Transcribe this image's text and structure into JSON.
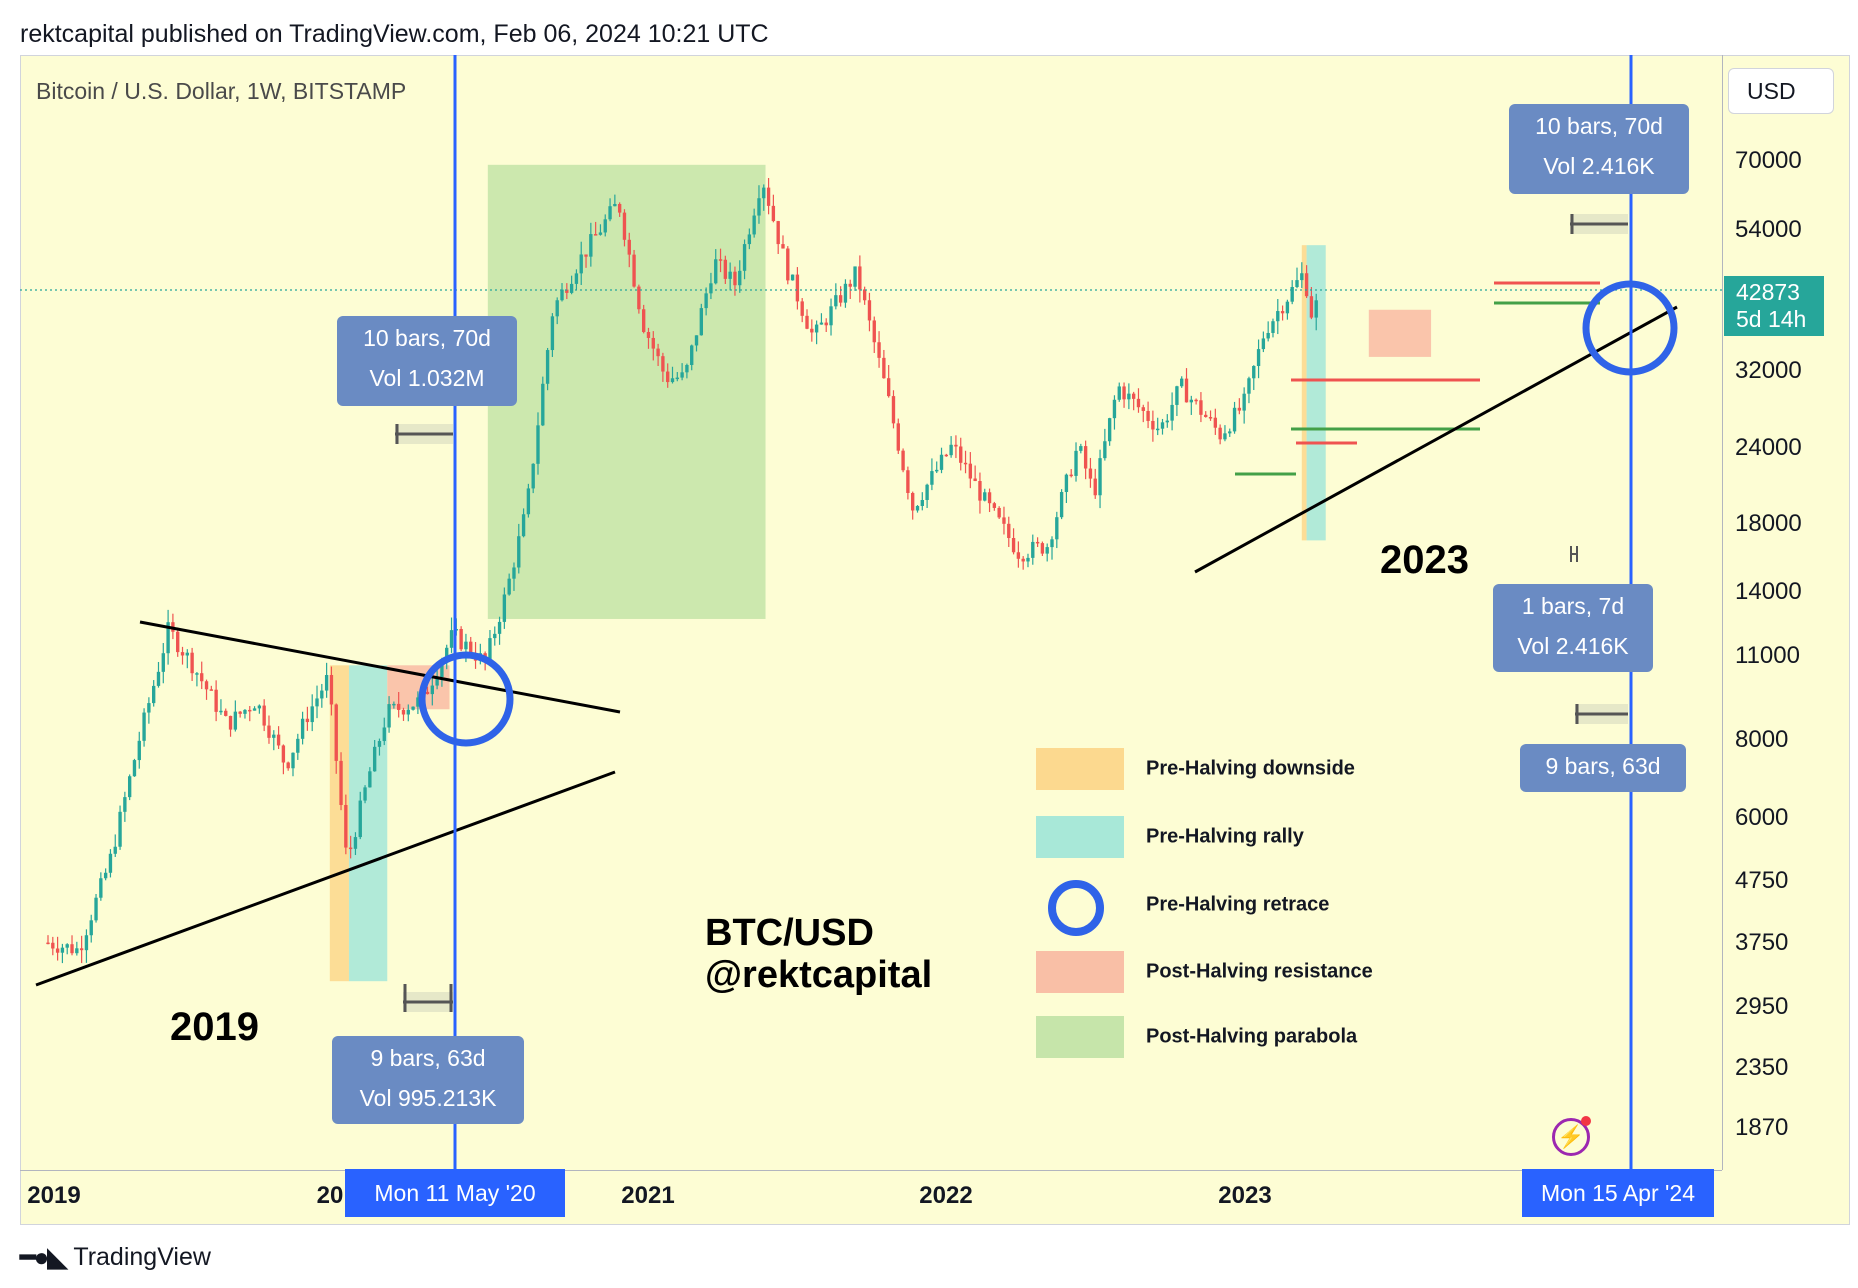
{
  "header": {
    "text": "rektcapital published on TradingView.com, Feb 06, 2024 10:21 UTC"
  },
  "symbol": {
    "text": "Bitcoin / U.S. Dollar, 1W, BITSTAMP"
  },
  "currency_button": "USD",
  "current_price": {
    "price": "42873",
    "countdown": "5d 14h"
  },
  "date_flags": {
    "left": "Mon 11 May '20",
    "right": "Mon 15 Apr '24"
  },
  "callouts": {
    "c1": {
      "line1": "10 bars, 70d",
      "line2": "Vol 1.032M"
    },
    "c2": {
      "line1": "9 bars, 63d",
      "line2": "Vol 995.213K"
    },
    "c3": {
      "line1": "10 bars, 70d",
      "line2": "Vol 2.416K"
    },
    "c4": {
      "line1": "1 bars, 7d",
      "line2": "Vol 2.416K"
    },
    "c5": {
      "line1": "9 bars, 63d"
    }
  },
  "labels": {
    "y2019": "2019",
    "y2023": "2023",
    "pair": "BTC/USD",
    "author": "@rektcapital"
  },
  "legend": [
    {
      "label": "Pre-Halving downside",
      "color": "#fcd98f"
    },
    {
      "label": "Pre-Halving rally",
      "color": "#a8e8d8"
    },
    {
      "label": "Pre-Halving retrace",
      "color": "#2f63e8"
    },
    {
      "label": "Post-Halving resistance",
      "color": "#f9bfa6"
    },
    {
      "label": "Post-Halving parabola",
      "color": "#c6e5aa"
    }
  ],
  "footer": {
    "brand": "TradingView",
    "logo": "tradingview-logo-icon"
  },
  "colors": {
    "up": "#26a69a",
    "down": "#ef5350",
    "halving_line": "#2962ff",
    "background": "#fdfdd4"
  },
  "chart_data": {
    "type": "candlestick",
    "title": "Bitcoin / U.S. Dollar, 1W, BITSTAMP",
    "y_scale": "log",
    "y_ticks": [
      "70000",
      "54000",
      "42873",
      "32000",
      "24000",
      "18000",
      "14000",
      "11000",
      "8000",
      "6000",
      "4750",
      "3750",
      "2950",
      "2350",
      "1870"
    ],
    "x_ticks": [
      "2019",
      "20",
      "2021",
      "2022",
      "2023",
      "2"
    ],
    "current_price": 42873,
    "halving_dates": [
      "2020-05-11",
      "2024-04-15"
    ],
    "price_path": [
      [
        "2019-01-01",
        3700
      ],
      [
        "2019-02-15",
        3600
      ],
      [
        "2019-04-01",
        5000
      ],
      [
        "2019-05-15",
        8000
      ],
      [
        "2019-06-26",
        12000
      ],
      [
        "2019-08-01",
        10500
      ],
      [
        "2019-09-20",
        8400
      ],
      [
        "2019-11-01",
        9200
      ],
      [
        "2019-12-15",
        7200
      ],
      [
        "2020-01-15",
        8700
      ],
      [
        "2020-02-14",
        10000
      ],
      [
        "2020-03-13",
        5000
      ],
      [
        "2020-04-15",
        7000
      ],
      [
        "2020-05-11",
        8800
      ],
      [
        "2020-07-01",
        9200
      ],
      [
        "2020-08-15",
        11800
      ],
      [
        "2020-10-01",
        10600
      ],
      [
        "2020-11-01",
        13800
      ],
      [
        "2020-12-01",
        19000
      ],
      [
        "2021-01-08",
        40000
      ],
      [
        "2021-02-15",
        48000
      ],
      [
        "2021-04-14",
        60000
      ],
      [
        "2021-05-20",
        38000
      ],
      [
        "2021-06-22",
        31000
      ],
      [
        "2021-07-20",
        31000
      ],
      [
        "2021-09-01",
        48000
      ],
      [
        "2021-10-01",
        44000
      ],
      [
        "2021-11-10",
        66000
      ],
      [
        "2021-12-15",
        47000
      ],
      [
        "2022-01-24",
        36000
      ],
      [
        "2022-03-28",
        46000
      ],
      [
        "2022-05-12",
        29000
      ],
      [
        "2022-06-18",
        19000
      ],
      [
        "2022-08-15",
        24000
      ],
      [
        "2022-10-01",
        19500
      ],
      [
        "2022-11-21",
        16000
      ],
      [
        "2023-01-01",
        16500
      ],
      [
        "2023-02-15",
        24000
      ],
      [
        "2023-03-10",
        20000
      ],
      [
        "2023-04-14",
        30000
      ],
      [
        "2023-06-15",
        25500
      ],
      [
        "2023-07-15",
        30000
      ],
      [
        "2023-09-11",
        25000
      ],
      [
        "2023-10-15",
        28000
      ],
      [
        "2023-11-15",
        37000
      ],
      [
        "2024-01-11",
        46000
      ],
      [
        "2024-01-23",
        39000
      ],
      [
        "2024-02-05",
        42873
      ]
    ],
    "zones": [
      {
        "name": "Pre-Halving downside",
        "start": "2020-02-17",
        "end": "2020-03-16",
        "low": 3200,
        "high": 10500
      },
      {
        "name": "Pre-Halving rally",
        "start": "2020-03-16",
        "end": "2020-05-11",
        "low": 3200,
        "high": 10500
      },
      {
        "name": "Post-Halving resistance",
        "start": "2020-05-11",
        "end": "2020-08-10",
        "low": 8900,
        "high": 10500
      },
      {
        "name": "Post-Halving parabola",
        "start": "2020-10-05",
        "end": "2021-11-15",
        "low": 12500,
        "high": 69000
      },
      {
        "name": "Pre-Halving downside",
        "start": "2024-01-08",
        "end": "2024-01-15",
        "low": 16800,
        "high": 51000
      },
      {
        "name": "Pre-Halving rally",
        "start": "2024-01-15",
        "end": "2024-02-12",
        "low": 16800,
        "high": 51000
      },
      {
        "name": "Post-Halving resistance",
        "start": "2024-04-15",
        "end": "2024-07-15",
        "low": 33500,
        "high": 40000
      }
    ],
    "retrace_circles": [
      {
        "date": "2020-05-11",
        "price": 9400
      },
      {
        "date": "2024-04-15",
        "price": 36000
      }
    ]
  }
}
